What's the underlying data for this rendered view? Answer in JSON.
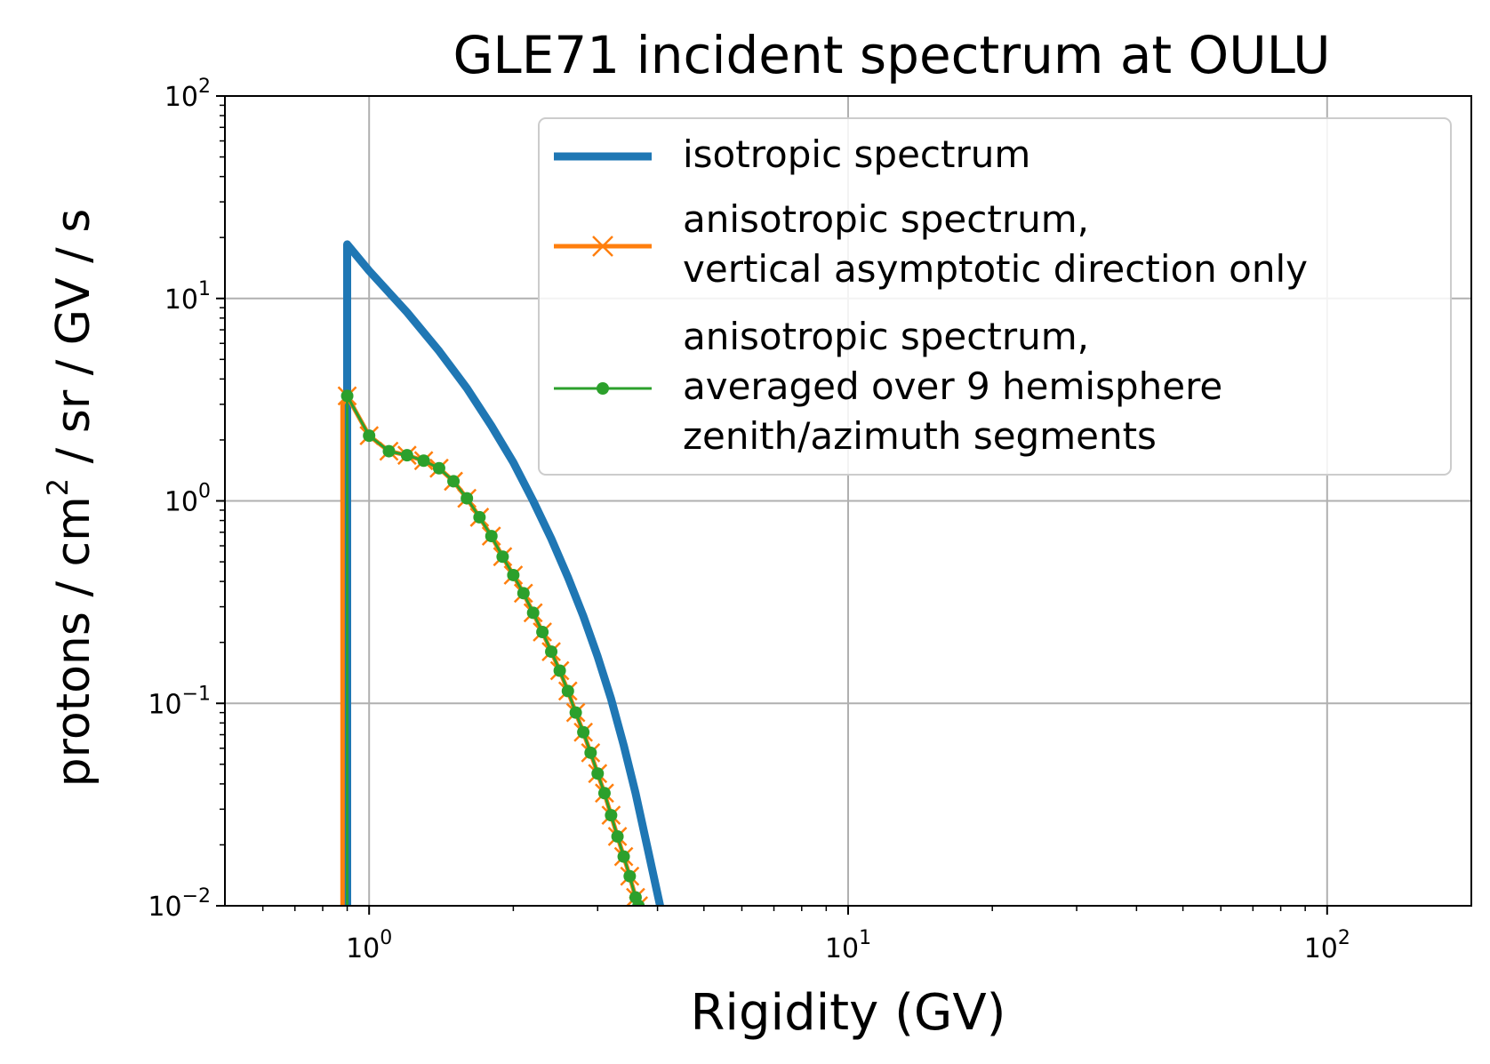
{
  "chart_data": {
    "type": "line",
    "title": "GLE71 incident spectrum at OULU",
    "xlabel": "Rigidity (GV)",
    "ylabel_prefix": "protons / cm",
    "ylabel_superscript": "2",
    "ylabel_suffix": " / sr / GV / s",
    "x_scale": "log",
    "y_scale": "log",
    "xlim": [
      0.5,
      200
    ],
    "ylim": [
      0.01,
      100
    ],
    "grid": true,
    "legend_position": "upper-right",
    "x_ticks": [
      {
        "value": 1,
        "base": "10",
        "exp": "0"
      },
      {
        "value": 10,
        "base": "10",
        "exp": "1"
      },
      {
        "value": 100,
        "base": "10",
        "exp": "2"
      }
    ],
    "y_ticks": [
      {
        "value": 0.01,
        "base": "10",
        "exp": "−2"
      },
      {
        "value": 0.1,
        "base": "10",
        "exp": "−1"
      },
      {
        "value": 1,
        "base": "10",
        "exp": "0"
      },
      {
        "value": 10,
        "base": "10",
        "exp": "1"
      },
      {
        "value": 100,
        "base": "10",
        "exp": "2"
      }
    ],
    "series": [
      {
        "name": "isotropic spectrum",
        "color": "#1f77b4",
        "marker": "none",
        "x": [
          0.9,
          0.9,
          1.0,
          1.2,
          1.4,
          1.6,
          1.8,
          2.0,
          2.2,
          2.4,
          2.6,
          2.8,
          3.0,
          3.2,
          3.4,
          3.6,
          3.8,
          4.05
        ],
        "y": [
          0.01,
          18.5,
          13.7,
          8.54,
          5.5,
          3.6,
          2.35,
          1.55,
          1.0,
          0.65,
          0.42,
          0.27,
          0.17,
          0.105,
          0.062,
          0.036,
          0.02,
          0.01
        ]
      },
      {
        "name": "anisotropic spectrum,\nvertical asymptotic direction only",
        "color": "#ff7f0e",
        "marker": "x",
        "x": [
          0.88,
          0.88,
          0.9,
          1.0,
          1.1,
          1.2,
          1.3,
          1.4,
          1.5,
          1.6,
          1.7,
          1.8,
          1.9,
          2.0,
          2.1,
          2.2,
          2.3,
          2.4,
          2.5,
          2.6,
          2.7,
          2.8,
          2.9,
          3.0,
          3.1,
          3.2,
          3.3,
          3.4,
          3.5,
          3.6,
          3.65
        ],
        "y": [
          0.01,
          3.0,
          3.3,
          2.1,
          1.76,
          1.68,
          1.58,
          1.45,
          1.25,
          1.03,
          0.83,
          0.67,
          0.53,
          0.43,
          0.35,
          0.28,
          0.225,
          0.18,
          0.145,
          0.115,
          0.09,
          0.072,
          0.057,
          0.045,
          0.036,
          0.028,
          0.022,
          0.0175,
          0.014,
          0.011,
          0.01
        ]
      },
      {
        "name": "anisotropic spectrum,\naveraged over 9 hemisphere\nzenith/azimuth segments",
        "color": "#2ca02c",
        "marker": "dot",
        "x": [
          0.9,
          0.9,
          0.9,
          1.0,
          1.1,
          1.2,
          1.3,
          1.4,
          1.5,
          1.6,
          1.7,
          1.8,
          1.9,
          2.0,
          2.1,
          2.2,
          2.3,
          2.4,
          2.5,
          2.6,
          2.7,
          2.8,
          2.9,
          3.0,
          3.1,
          3.2,
          3.3,
          3.4,
          3.5,
          3.6,
          3.65
        ],
        "y": [
          0.01,
          3.0,
          3.3,
          2.1,
          1.76,
          1.68,
          1.58,
          1.45,
          1.25,
          1.03,
          0.83,
          0.67,
          0.53,
          0.43,
          0.35,
          0.28,
          0.225,
          0.18,
          0.145,
          0.115,
          0.09,
          0.072,
          0.057,
          0.045,
          0.036,
          0.028,
          0.022,
          0.0175,
          0.014,
          0.011,
          0.01
        ]
      }
    ]
  }
}
